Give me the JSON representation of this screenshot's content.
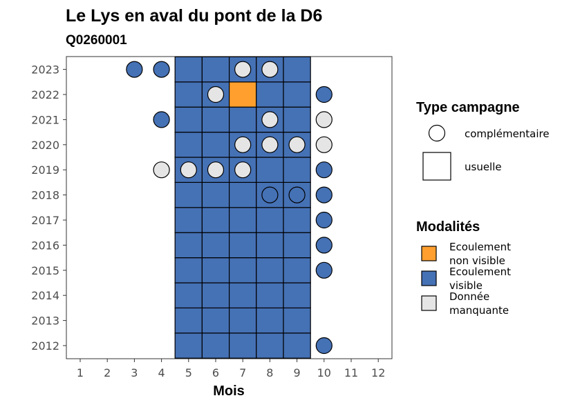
{
  "chart_data": {
    "type": "heatmap",
    "title": "Le Lys en aval du pont de la D6",
    "subtitle": "Q0260001",
    "xlabel": "Mois",
    "ylabel": "",
    "x_ticks": [
      "1",
      "2",
      "3",
      "4",
      "5",
      "6",
      "7",
      "8",
      "9",
      "10",
      "11",
      "12"
    ],
    "y_ticks": [
      "2012",
      "2013",
      "2014",
      "2015",
      "2016",
      "2017",
      "2018",
      "2019",
      "2020",
      "2021",
      "2022",
      "2023"
    ],
    "grid": false,
    "legend_position": "right",
    "colors": {
      "Ecoulement non visible": "#FE9F2E",
      "Ecoulement visible": "#4571B5",
      "Donnée manquante": "#E5E5E5"
    },
    "usuelle": [
      {
        "year": 2012,
        "month": 5,
        "modalite": "Ecoulement visible"
      },
      {
        "year": 2012,
        "month": 6,
        "modalite": "Ecoulement visible"
      },
      {
        "year": 2012,
        "month": 7,
        "modalite": "Ecoulement visible"
      },
      {
        "year": 2012,
        "month": 8,
        "modalite": "Ecoulement visible"
      },
      {
        "year": 2012,
        "month": 9,
        "modalite": "Ecoulement visible"
      },
      {
        "year": 2013,
        "month": 5,
        "modalite": "Ecoulement visible"
      },
      {
        "year": 2013,
        "month": 6,
        "modalite": "Ecoulement visible"
      },
      {
        "year": 2013,
        "month": 7,
        "modalite": "Ecoulement visible"
      },
      {
        "year": 2013,
        "month": 8,
        "modalite": "Ecoulement visible"
      },
      {
        "year": 2013,
        "month": 9,
        "modalite": "Ecoulement visible"
      },
      {
        "year": 2014,
        "month": 5,
        "modalite": "Ecoulement visible"
      },
      {
        "year": 2014,
        "month": 6,
        "modalite": "Ecoulement visible"
      },
      {
        "year": 2014,
        "month": 7,
        "modalite": "Ecoulement visible"
      },
      {
        "year": 2014,
        "month": 8,
        "modalite": "Ecoulement visible"
      },
      {
        "year": 2014,
        "month": 9,
        "modalite": "Ecoulement visible"
      },
      {
        "year": 2015,
        "month": 5,
        "modalite": "Ecoulement visible"
      },
      {
        "year": 2015,
        "month": 6,
        "modalite": "Ecoulement visible"
      },
      {
        "year": 2015,
        "month": 7,
        "modalite": "Ecoulement visible"
      },
      {
        "year": 2015,
        "month": 8,
        "modalite": "Ecoulement visible"
      },
      {
        "year": 2015,
        "month": 9,
        "modalite": "Ecoulement visible"
      },
      {
        "year": 2016,
        "month": 5,
        "modalite": "Ecoulement visible"
      },
      {
        "year": 2016,
        "month": 6,
        "modalite": "Ecoulement visible"
      },
      {
        "year": 2016,
        "month": 7,
        "modalite": "Ecoulement visible"
      },
      {
        "year": 2016,
        "month": 8,
        "modalite": "Ecoulement visible"
      },
      {
        "year": 2016,
        "month": 9,
        "modalite": "Ecoulement visible"
      },
      {
        "year": 2017,
        "month": 5,
        "modalite": "Ecoulement visible"
      },
      {
        "year": 2017,
        "month": 6,
        "modalite": "Ecoulement visible"
      },
      {
        "year": 2017,
        "month": 7,
        "modalite": "Ecoulement visible"
      },
      {
        "year": 2017,
        "month": 8,
        "modalite": "Ecoulement visible"
      },
      {
        "year": 2017,
        "month": 9,
        "modalite": "Ecoulement visible"
      },
      {
        "year": 2018,
        "month": 5,
        "modalite": "Ecoulement visible"
      },
      {
        "year": 2018,
        "month": 6,
        "modalite": "Ecoulement visible"
      },
      {
        "year": 2018,
        "month": 7,
        "modalite": "Ecoulement visible"
      },
      {
        "year": 2018,
        "month": 8,
        "modalite": "Ecoulement visible"
      },
      {
        "year": 2018,
        "month": 9,
        "modalite": "Ecoulement visible"
      },
      {
        "year": 2019,
        "month": 5,
        "modalite": "Ecoulement visible"
      },
      {
        "year": 2019,
        "month": 6,
        "modalite": "Ecoulement visible"
      },
      {
        "year": 2019,
        "month": 7,
        "modalite": "Ecoulement visible"
      },
      {
        "year": 2019,
        "month": 8,
        "modalite": "Ecoulement visible"
      },
      {
        "year": 2019,
        "month": 9,
        "modalite": "Ecoulement visible"
      },
      {
        "year": 2020,
        "month": 5,
        "modalite": "Ecoulement visible"
      },
      {
        "year": 2020,
        "month": 6,
        "modalite": "Ecoulement visible"
      },
      {
        "year": 2020,
        "month": 7,
        "modalite": "Ecoulement visible"
      },
      {
        "year": 2020,
        "month": 8,
        "modalite": "Ecoulement visible"
      },
      {
        "year": 2020,
        "month": 9,
        "modalite": "Ecoulement visible"
      },
      {
        "year": 2021,
        "month": 5,
        "modalite": "Ecoulement visible"
      },
      {
        "year": 2021,
        "month": 6,
        "modalite": "Ecoulement visible"
      },
      {
        "year": 2021,
        "month": 7,
        "modalite": "Ecoulement visible"
      },
      {
        "year": 2021,
        "month": 8,
        "modalite": "Ecoulement visible"
      },
      {
        "year": 2021,
        "month": 9,
        "modalite": "Ecoulement visible"
      },
      {
        "year": 2022,
        "month": 5,
        "modalite": "Ecoulement visible"
      },
      {
        "year": 2022,
        "month": 6,
        "modalite": "Ecoulement visible"
      },
      {
        "year": 2022,
        "month": 7,
        "modalite": "Ecoulement non visible"
      },
      {
        "year": 2022,
        "month": 8,
        "modalite": "Ecoulement visible"
      },
      {
        "year": 2022,
        "month": 9,
        "modalite": "Ecoulement visible"
      },
      {
        "year": 2023,
        "month": 5,
        "modalite": "Ecoulement visible"
      },
      {
        "year": 2023,
        "month": 6,
        "modalite": "Ecoulement visible"
      },
      {
        "year": 2023,
        "month": 7,
        "modalite": "Ecoulement visible"
      },
      {
        "year": 2023,
        "month": 8,
        "modalite": "Ecoulement visible"
      },
      {
        "year": 2023,
        "month": 9,
        "modalite": "Ecoulement visible"
      }
    ],
    "complementaire": [
      {
        "year": 2023,
        "month": 3,
        "modalite": "Ecoulement visible"
      },
      {
        "year": 2023,
        "month": 4,
        "modalite": "Ecoulement visible"
      },
      {
        "year": 2023,
        "month": 7,
        "modalite": "Donnée manquante"
      },
      {
        "year": 2023,
        "month": 8,
        "modalite": "Donnée manquante"
      },
      {
        "year": 2022,
        "month": 6,
        "modalite": "Donnée manquante"
      },
      {
        "year": 2022,
        "month": 10,
        "modalite": "Ecoulement visible"
      },
      {
        "year": 2021,
        "month": 4,
        "modalite": "Ecoulement visible"
      },
      {
        "year": 2021,
        "month": 8,
        "modalite": "Donnée manquante"
      },
      {
        "year": 2021,
        "month": 10,
        "modalite": "Donnée manquante"
      },
      {
        "year": 2020,
        "month": 7,
        "modalite": "Donnée manquante"
      },
      {
        "year": 2020,
        "month": 8,
        "modalite": "Donnée manquante"
      },
      {
        "year": 2020,
        "month": 9,
        "modalite": "Donnée manquante"
      },
      {
        "year": 2020,
        "month": 10,
        "modalite": "Donnée manquante"
      },
      {
        "year": 2019,
        "month": 4,
        "modalite": "Donnée manquante"
      },
      {
        "year": 2019,
        "month": 5,
        "modalite": "Donnée manquante"
      },
      {
        "year": 2019,
        "month": 6,
        "modalite": "Donnée manquante"
      },
      {
        "year": 2019,
        "month": 7,
        "modalite": "Donnée manquante"
      },
      {
        "year": 2019,
        "month": 10,
        "modalite": "Ecoulement visible"
      },
      {
        "year": 2018,
        "month": 8,
        "modalite": "Ecoulement visible"
      },
      {
        "year": 2018,
        "month": 9,
        "modalite": "Ecoulement visible"
      },
      {
        "year": 2018,
        "month": 10,
        "modalite": "Ecoulement visible"
      },
      {
        "year": 2017,
        "month": 10,
        "modalite": "Ecoulement visible"
      },
      {
        "year": 2016,
        "month": 10,
        "modalite": "Ecoulement visible"
      },
      {
        "year": 2015,
        "month": 10,
        "modalite": "Ecoulement visible"
      },
      {
        "year": 2012,
        "month": 10,
        "modalite": "Ecoulement visible"
      }
    ],
    "legend_type": {
      "title": "Type campagne",
      "items": [
        "complémentaire",
        "usuelle"
      ]
    },
    "legend_modalites": {
      "title": "Modalités",
      "items": [
        {
          "line1": "Ecoulement",
          "line2": "non visible",
          "key": "Ecoulement non visible"
        },
        {
          "line1": "Ecoulement",
          "line2": "visible",
          "key": "Ecoulement visible"
        },
        {
          "line1": "Donnée",
          "line2": "manquante",
          "key": "Donnée manquante"
        }
      ]
    }
  }
}
